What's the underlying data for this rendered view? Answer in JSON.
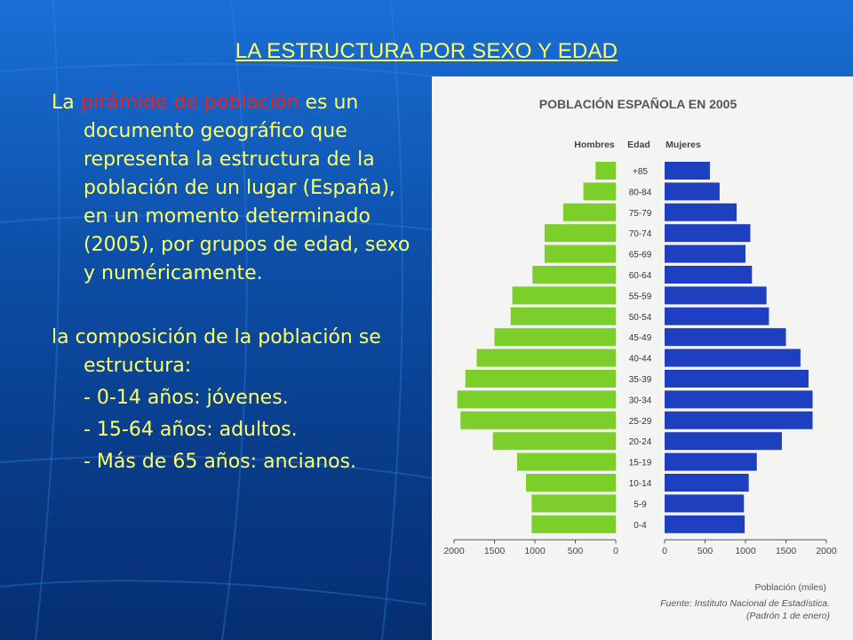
{
  "title": "LA ESTRUCTURA POR SEXO Y EDAD",
  "text": {
    "p1_prefix": "La ",
    "p1_highlight": "pirámide de población",
    "p1_rest": " es un documento geográfico que representa la estructura de la población de un lugar (España), en un momento determinado (2005), por grupos de edad, sexo  y numéricamente.",
    "p2": "la composición de la población se estructura:",
    "items": [
      "- 0-14 años: jóvenes.",
      "- 15-64 años: adultos.",
      "- Más de 65 años: ancianos."
    ]
  },
  "colors": {
    "title": "#ffff66",
    "text": "#ffff66",
    "highlight": "#e8231f",
    "men": "#7ccf2a",
    "women": "#1d3fc0",
    "background": "#0d4fa8"
  },
  "chart_data": {
    "type": "bar",
    "orientation": "horizontal-pyramid",
    "title": "POBLACIÓN ESPAÑOLA EN 2005",
    "headers": {
      "men": "Hombres",
      "age": "Edad",
      "women": "Mujeres"
    },
    "categories": [
      "+85",
      "80-84",
      "75-79",
      "70-74",
      "65-69",
      "60-64",
      "55-59",
      "50-54",
      "45-49",
      "40-44",
      "35-39",
      "30-34",
      "25-29",
      "20-24",
      "15-19",
      "10-14",
      "5-9",
      "0-4"
    ],
    "series": [
      {
        "name": "Hombres",
        "values": [
          250,
          400,
          650,
          880,
          880,
          1030,
          1280,
          1300,
          1500,
          1720,
          1860,
          1960,
          1920,
          1520,
          1220,
          1110,
          1040,
          1040
        ]
      },
      {
        "name": "Mujeres",
        "values": [
          560,
          680,
          890,
          1060,
          1000,
          1080,
          1260,
          1290,
          1500,
          1680,
          1780,
          1830,
          1830,
          1450,
          1140,
          1040,
          980,
          990
        ]
      }
    ],
    "x_ticks_left": [
      "2000",
      "1500",
      "1000",
      "500",
      "0"
    ],
    "x_ticks_right": [
      "0",
      "500",
      "1000",
      "1500",
      "2000"
    ],
    "xlim": [
      0,
      2000
    ],
    "xlabel": "Población (miles)",
    "source_line1": "Fuente: Instituto Nacional de Estadística.",
    "source_line2": "(Padrón 1 de enero)"
  }
}
